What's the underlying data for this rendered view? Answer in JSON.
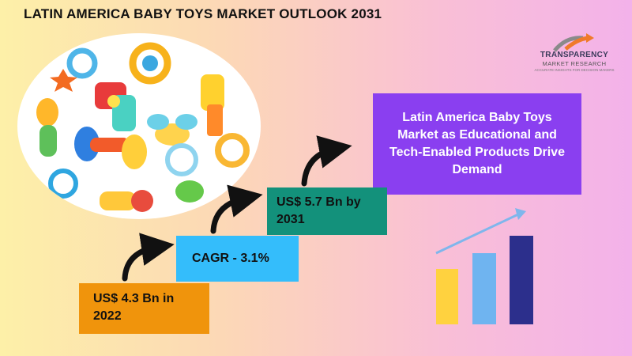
{
  "title": "LATIN AMERICA BABY TOYS MARKET OUTLOOK 2031",
  "logo": {
    "line1": "TRANSPARENCY",
    "line2": "MARKET RESEARCH",
    "line3": "ACCURATE INSIGHTS FOR DECISION MAKERS"
  },
  "headline": "Latin America Baby Toys Market as Educational and Tech-Enabled Products Drive Demand",
  "steps": {
    "start": "US$ 4.3 Bn in 2022",
    "cagr": "CAGR - 3.1%",
    "end": "US$ 5.7 Bn by 2031"
  },
  "colors": {
    "purple": "#8a3ff0",
    "orange": "#f0940c",
    "blue": "#34bdfb",
    "teal": "#13917b",
    "bar_yellow": "#ffd23f",
    "bar_light_blue": "#6fb4f0",
    "bar_navy": "#2c2f8c"
  },
  "icons": [
    "baby-toys-photo",
    "growth-bar-chart-icon",
    "step-arrow-icon",
    "brand-logo-icon"
  ]
}
